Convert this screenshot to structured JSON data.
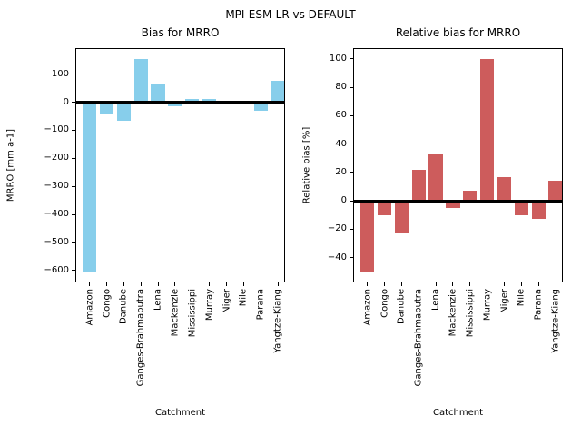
{
  "figure": {
    "suptitle": "MPI-ESM-LR vs DEFAULT",
    "background_color": "#ffffff",
    "text_color": "#000000",
    "zero_line_color": "#000000"
  },
  "chart_data": [
    {
      "type": "bar",
      "title": "Bias for MRRO",
      "xlabel": "Catchment",
      "ylabel": "MRRO [mm a-1]",
      "bar_color": "#87CEEB",
      "bar_color_name": "skyblue",
      "zero_line": true,
      "grid": false,
      "ylim": [
        -643,
        193
      ],
      "yticks": [
        100,
        0,
        -100,
        -200,
        -300,
        -400,
        -500,
        -600
      ],
      "categories": [
        "Amazon",
        "Congo",
        "Danube",
        "Ganges-Brahmaputra",
        "Lena",
        "Mackenzie",
        "Mississippi",
        "Murray",
        "Niger",
        "Nile",
        "Parana",
        "Yangtze-Kiang"
      ],
      "values": [
        -605,
        -45,
        -65,
        155,
        65,
        -15,
        12,
        10,
        6,
        -2,
        -30,
        75
      ]
    },
    {
      "type": "bar",
      "title": "Relative bias for MRRO",
      "xlabel": "Catchment",
      "ylabel": "Relative bias [%]",
      "bar_color": "#CD5C5C",
      "bar_color_name": "indianred",
      "zero_line": true,
      "grid": false,
      "ylim": [
        -57.5,
        107.5
      ],
      "yticks": [
        100,
        80,
        60,
        40,
        20,
        0,
        -20,
        -40
      ],
      "categories": [
        "Amazon",
        "Congo",
        "Danube",
        "Ganges-Brahmaputra",
        "Lena",
        "Mackenzie",
        "Mississippi",
        "Murray",
        "Niger",
        "Nile",
        "Parana",
        "Yangtze-Kiang"
      ],
      "values": [
        -50,
        -10,
        -23,
        22,
        33,
        -5,
        7,
        100,
        17,
        -10,
        -13,
        14
      ]
    }
  ]
}
